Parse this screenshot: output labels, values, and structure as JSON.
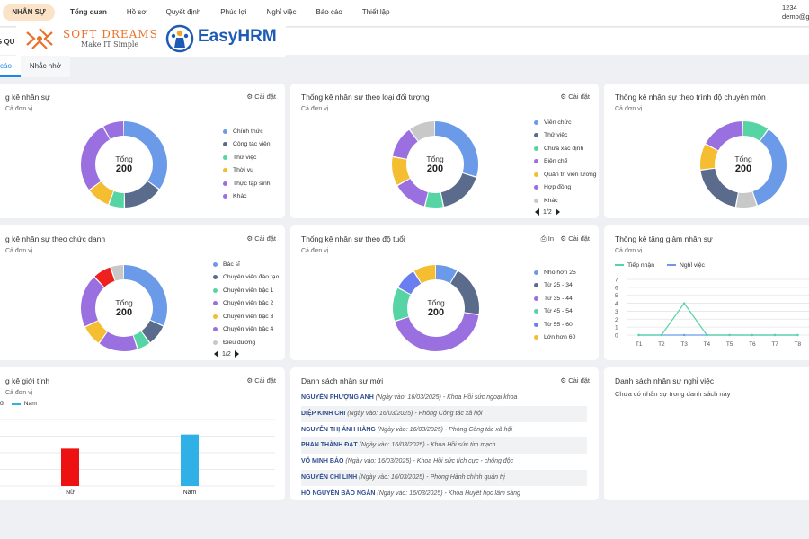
{
  "nav": {
    "module": "NHÂN SỰ",
    "items": [
      "Tổng quan",
      "Hồ sơ",
      "Quyết định",
      "Phúc lợi",
      "Nghỉ việc",
      "Báo cáo",
      "Thiết lập"
    ],
    "user_line1": "1234",
    "user_line2": "demo@gm"
  },
  "breadcrumb": "G QU",
  "logos": {
    "softdreams": "SOFT DREAMS",
    "softdreams_tag": "Make IT Simple",
    "easyhrm": "EasyHRM"
  },
  "tabs": [
    "cáo",
    "Nhắc nhở"
  ],
  "common": {
    "setting": "Cài đặt",
    "unit": "Cả đơn vị",
    "total": "Tổng",
    "in": "In"
  },
  "cards": {
    "c1": {
      "title": "g kê nhân sự",
      "total": "200",
      "legend": [
        {
          "label": "Chính thức",
          "color": "#6b9ae8",
          "value": 35
        },
        {
          "label": "Cộng tác viên",
          "color": "#5b6b8c",
          "value": 15
        },
        {
          "label": "Thử việc",
          "color": "#56d4a4",
          "value": 6
        },
        {
          "label": "Thời vụ",
          "color": "#f5bd30",
          "value": 9
        },
        {
          "label": "Thực tập sinh",
          "color": "#9a6fe0",
          "value": 27
        },
        {
          "label": "Khác",
          "color": "#9a6fe0",
          "value": 8
        }
      ]
    },
    "c2": {
      "title": "Thống kê nhân sự theo loại đối tượng",
      "total": "200",
      "legend": [
        {
          "label": "Viên chức",
          "color": "#6b9ae8",
          "value": 30
        },
        {
          "label": "Thử việc",
          "color": "#5b6b8c",
          "value": 17
        },
        {
          "label": "Chưa xác định",
          "color": "#56d4a4",
          "value": 7
        },
        {
          "label": "Biên chế",
          "color": "#9a6fe0",
          "value": 13
        },
        {
          "label": "Quản trị viên lương",
          "color": "#f5bd30",
          "value": 11
        },
        {
          "label": "Hợp đồng",
          "color": "#9a6fe0",
          "value": 12
        },
        {
          "label": "Khác",
          "color": "#c8c8c8",
          "value": 10
        }
      ],
      "pager": "1/2"
    },
    "c3": {
      "title": "Thống kê nhân sự theo trình độ chuyên môn",
      "segments": [
        {
          "color": "#56d4a4",
          "value": 10
        },
        {
          "color": "#6b9ae8",
          "value": 35
        },
        {
          "color": "#c8c8c8",
          "value": 8
        },
        {
          "color": "#5b6b8c",
          "value": 20
        },
        {
          "color": "#f5bd30",
          "value": 10
        },
        {
          "color": "#9a6fe0",
          "value": 17
        }
      ],
      "total": "200"
    },
    "c4": {
      "title": "g kê nhân sự theo chức danh",
      "total": "200",
      "legend": [
        {
          "label": "Bác sĩ",
          "color": "#6b9ae8",
          "value": 32
        },
        {
          "label": "Chuyên viên đào tạo",
          "color": "#5b6b8c",
          "value": 8
        },
        {
          "label": "Chuyên viên bậc 1",
          "color": "#56d4a4",
          "value": 5
        },
        {
          "label": "Chuyên viên bậc 2",
          "color": "#9a6fe0",
          "value": 15
        },
        {
          "label": "Chuyên viên bậc 3",
          "color": "#f5bd30",
          "value": 8
        },
        {
          "label": "Chuyên viên bậc 4",
          "color": "#9a6fe0",
          "value": 20
        },
        {
          "label": "Điều dưỡng",
          "color": "#c8c8c8",
          "value": 5
        }
      ],
      "extra_segment": {
        "color": "#ee2020",
        "value": 7
      },
      "pager": "1/2"
    },
    "c5": {
      "title": "Thống kê nhân sự theo độ tuổi",
      "total": "200",
      "legend": [
        {
          "label": "Nhỏ hơn 25",
          "color": "#6b9ae8",
          "value": 8
        },
        {
          "label": "Từ 25 - 34",
          "color": "#5b6b8c",
          "value": 18
        },
        {
          "label": "Từ 35 - 44",
          "color": "#9a6fe0",
          "value": 40
        },
        {
          "label": "Từ 45 - 54",
          "color": "#56d4a4",
          "value": 12
        },
        {
          "label": "Từ 55 - 60",
          "color": "#6b7ef0",
          "value": 8
        },
        {
          "label": "Lớn hơn 60",
          "color": "#f5bd30",
          "value": 8
        }
      ]
    },
    "c6": {
      "title": "Thống kê tăng giảm nhân sự",
      "legend": [
        "Tiếp nhận",
        "Nghỉ việc"
      ]
    },
    "c7": {
      "title": "g kê giới tính",
      "legend": "Nam",
      "legend_prefix": "ữ"
    },
    "c8": {
      "title": "Danh sách nhân sự mới",
      "rows": [
        {
          "name": "NGUYỄN PHƯỢNG ANH",
          "date": "(Ngày vào: 16/03/2025)",
          "dept": " - Khoa Hồi sức ngoại khoa"
        },
        {
          "name": "DIỆP KINH CHI",
          "date": "(Ngày vào: 16/03/2025)",
          "dept": " - Phòng Công tác xã hội"
        },
        {
          "name": "NGUYỄN THỊ ÁNH HẰNG",
          "date": "(Ngày vào: 16/03/2025)",
          "dept": " - Phòng Công tác xã hội"
        },
        {
          "name": "PHAN THÀNH ĐẠT",
          "date": "(Ngày vào: 16/03/2025)",
          "dept": " - Khoa Hồi sức tim mạch"
        },
        {
          "name": "VÕ MINH BẢO",
          "date": "(Ngày vào: 16/03/2025)",
          "dept": " - Khoa Hồi sức tích cực - chống độc"
        },
        {
          "name": "NGUYỄN CHÍ LINH",
          "date": "(Ngày vào: 16/03/2025)",
          "dept": " - Phòng Hành chính quản trị"
        },
        {
          "name": "HỒ NGUYỄN BẢO NGÂN",
          "date": "(Ngày vào: 16/03/2025)",
          "dept": " - Khoa Huyết học lâm sàng"
        }
      ]
    },
    "c9": {
      "title": "Danh sách nhân sự nghỉ việc",
      "empty": "Chưa có nhân sự trong danh sách này"
    }
  },
  "chart_data": [
    {
      "type": "line",
      "categories": [
        "T1",
        "T2",
        "T3",
        "T4",
        "T5",
        "T6",
        "T7",
        "T8"
      ],
      "series": [
        {
          "name": "Tiếp nhận",
          "color": "#56d4a4",
          "values": [
            0,
            0,
            4,
            0,
            0,
            0,
            0,
            0
          ]
        },
        {
          "name": "Nghỉ việc",
          "color": "#6b9ae8",
          "values": [
            0,
            0,
            0,
            0,
            0,
            0,
            0,
            0
          ]
        }
      ],
      "yticks": [
        "0",
        "1",
        "2",
        "3",
        "4",
        "5",
        "6",
        "7"
      ],
      "ylim": [
        0,
        7
      ],
      "grid": true
    },
    {
      "type": "bar",
      "categories": [
        "Nữ",
        "Nam"
      ],
      "values": [
        45,
        62
      ],
      "colors": [
        "#ee1111",
        "#2fb0e6"
      ],
      "ylim": [
        0,
        80
      ],
      "grid": true
    }
  ]
}
